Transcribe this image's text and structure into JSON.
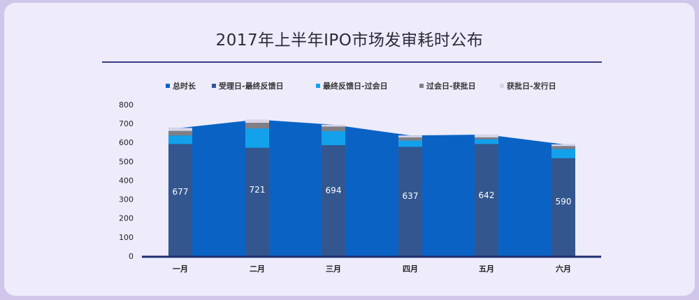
{
  "chart_data": {
    "type": "bar",
    "title": "2017年上半年IPO市场发审耗时公布",
    "categories": [
      "一月",
      "二月",
      "三月",
      "四月",
      "五月",
      "六月"
    ],
    "ylim": [
      0,
      800
    ],
    "yticks": [
      0,
      100,
      200,
      300,
      400,
      500,
      600,
      700,
      800
    ],
    "total": {
      "name": "总时长",
      "values": [
        677,
        721,
        694,
        637,
        642,
        590
      ]
    },
    "series": [
      {
        "name": "受理日-最终反馈日",
        "values": [
          592,
          572,
          586,
          577,
          592,
          517
        ]
      },
      {
        "name": "最终反馈日-过会日",
        "values": [
          45,
          102,
          74,
          33,
          25,
          48
        ]
      },
      {
        "name": "过会日-获批日",
        "values": [
          24,
          30,
          24,
          17,
          10,
          16
        ]
      },
      {
        "name": "获批日-发行日",
        "values": [
          16,
          17,
          10,
          10,
          15,
          9
        ]
      }
    ],
    "legend_position": "top",
    "grid": false
  },
  "colors": {
    "total": "#0a63c4",
    "s1": "#33568e",
    "s2": "#13a1ec",
    "s3": "#7f7f86",
    "s4": "#d9d5e6",
    "axis": "#1d2c6e"
  }
}
